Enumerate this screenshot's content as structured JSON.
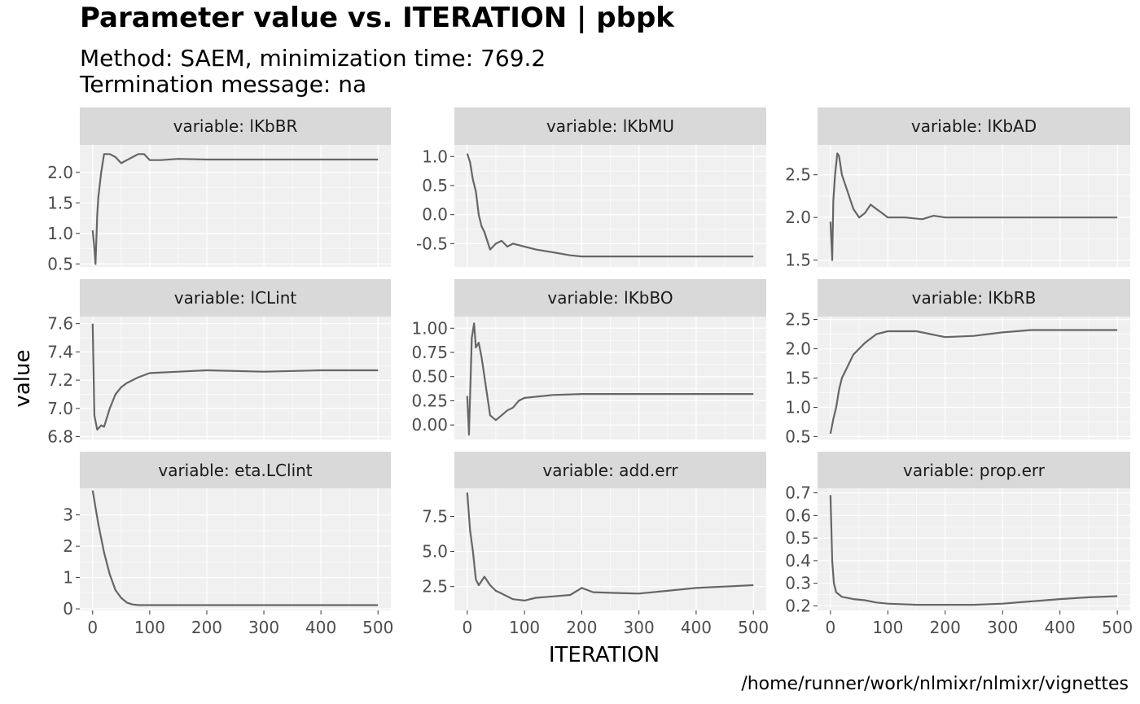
{
  "title": "Parameter value vs. ITERATION | pbpk",
  "subtitle_line1": "Method: SAEM, minimization time: 769.2",
  "subtitle_line2": "Termination message: na",
  "caption": "/home/runner/work/nlmixr/nlmixr/vignettes",
  "colors": {
    "line": "#666666",
    "panel_bg": "#f0f0f0",
    "strip_bg": "#d9d9d9",
    "grid": "#ffffff"
  },
  "chart_data": {
    "type": "line",
    "xlabel": "ITERATION",
    "ylabel": "value",
    "xlim": [
      0,
      500
    ],
    "x_ticks": [
      0,
      100,
      200,
      300,
      400,
      500
    ],
    "x_tick_labels": [
      "0",
      "100",
      "200",
      "300",
      "400",
      "500"
    ],
    "grid": true,
    "facets": [
      {
        "strip": "variable: lKbBR",
        "ylim": [
          0.45,
          2.45
        ],
        "y_ticks": [
          0.5,
          1.0,
          1.5,
          2.0
        ],
        "y_tick_labels": [
          "0.5",
          "1.0",
          "1.5",
          "2.0"
        ],
        "points": [
          [
            0,
            1.05
          ],
          [
            3,
            0.75
          ],
          [
            5,
            0.5
          ],
          [
            8,
            1.3
          ],
          [
            10,
            1.6
          ],
          [
            15,
            2.0
          ],
          [
            20,
            2.3
          ],
          [
            30,
            2.3
          ],
          [
            40,
            2.25
          ],
          [
            50,
            2.15
          ],
          [
            60,
            2.2
          ],
          [
            70,
            2.25
          ],
          [
            80,
            2.3
          ],
          [
            90,
            2.3
          ],
          [
            100,
            2.2
          ],
          [
            120,
            2.2
          ],
          [
            150,
            2.22
          ],
          [
            200,
            2.21
          ],
          [
            300,
            2.21
          ],
          [
            400,
            2.21
          ],
          [
            500,
            2.21
          ]
        ]
      },
      {
        "strip": "variable: lKbMU",
        "ylim": [
          -0.9,
          1.2
        ],
        "y_ticks": [
          -0.5,
          0.0,
          0.5,
          1.0
        ],
        "y_tick_labels": [
          "-0.5",
          "0.0",
          "0.5",
          "1.0"
        ],
        "points": [
          [
            0,
            1.05
          ],
          [
            5,
            0.9
          ],
          [
            10,
            0.6
          ],
          [
            15,
            0.4
          ],
          [
            20,
            0.0
          ],
          [
            25,
            -0.2
          ],
          [
            30,
            -0.3
          ],
          [
            40,
            -0.6
          ],
          [
            50,
            -0.5
          ],
          [
            60,
            -0.45
          ],
          [
            70,
            -0.55
          ],
          [
            80,
            -0.5
          ],
          [
            100,
            -0.55
          ],
          [
            120,
            -0.6
          ],
          [
            150,
            -0.65
          ],
          [
            180,
            -0.7
          ],
          [
            200,
            -0.72
          ],
          [
            250,
            -0.72
          ],
          [
            300,
            -0.72
          ],
          [
            400,
            -0.72
          ],
          [
            500,
            -0.72
          ]
        ]
      },
      {
        "strip": "variable: lKbAD",
        "ylim": [
          1.42,
          2.85
        ],
        "y_ticks": [
          1.5,
          2.0,
          2.5
        ],
        "y_tick_labels": [
          "1.5",
          "2.0",
          "2.5"
        ],
        "points": [
          [
            0,
            1.95
          ],
          [
            3,
            1.5
          ],
          [
            5,
            2.2
          ],
          [
            8,
            2.5
          ],
          [
            12,
            2.75
          ],
          [
            15,
            2.72
          ],
          [
            20,
            2.5
          ],
          [
            30,
            2.3
          ],
          [
            40,
            2.1
          ],
          [
            50,
            2.0
          ],
          [
            60,
            2.05
          ],
          [
            70,
            2.15
          ],
          [
            80,
            2.1
          ],
          [
            90,
            2.05
          ],
          [
            100,
            2.0
          ],
          [
            130,
            2.0
          ],
          [
            160,
            1.98
          ],
          [
            180,
            2.02
          ],
          [
            200,
            2.0
          ],
          [
            300,
            2.0
          ],
          [
            400,
            2.0
          ],
          [
            500,
            2.0
          ]
        ]
      },
      {
        "strip": "variable: lCLint",
        "ylim": [
          6.78,
          7.65
        ],
        "y_ticks": [
          6.8,
          7.0,
          7.2,
          7.4,
          7.6
        ],
        "y_tick_labels": [
          "6.8",
          "7.0",
          "7.2",
          "7.4",
          "7.6"
        ],
        "points": [
          [
            0,
            7.6
          ],
          [
            3,
            6.95
          ],
          [
            8,
            6.85
          ],
          [
            15,
            6.88
          ],
          [
            20,
            6.87
          ],
          [
            30,
            7.0
          ],
          [
            40,
            7.1
          ],
          [
            50,
            7.15
          ],
          [
            60,
            7.18
          ],
          [
            80,
            7.22
          ],
          [
            100,
            7.25
          ],
          [
            150,
            7.26
          ],
          [
            200,
            7.27
          ],
          [
            300,
            7.26
          ],
          [
            400,
            7.27
          ],
          [
            500,
            7.27
          ]
        ]
      },
      {
        "strip": "variable: lKbBO",
        "ylim": [
          -0.15,
          1.12
        ],
        "y_ticks": [
          0.0,
          0.25,
          0.5,
          0.75,
          1.0
        ],
        "y_tick_labels": [
          "0.00",
          "0.25",
          "0.50",
          "0.75",
          "1.00"
        ],
        "points": [
          [
            0,
            0.3
          ],
          [
            3,
            -0.1
          ],
          [
            5,
            0.3
          ],
          [
            8,
            0.9
          ],
          [
            12,
            1.05
          ],
          [
            15,
            0.8
          ],
          [
            20,
            0.85
          ],
          [
            25,
            0.7
          ],
          [
            30,
            0.5
          ],
          [
            35,
            0.3
          ],
          [
            40,
            0.1
          ],
          [
            50,
            0.05
          ],
          [
            60,
            0.1
          ],
          [
            70,
            0.15
          ],
          [
            80,
            0.18
          ],
          [
            90,
            0.25
          ],
          [
            100,
            0.28
          ],
          [
            150,
            0.31
          ],
          [
            200,
            0.32
          ],
          [
            300,
            0.32
          ],
          [
            400,
            0.32
          ],
          [
            500,
            0.32
          ]
        ]
      },
      {
        "strip": "variable: lKbRB",
        "ylim": [
          0.45,
          2.55
        ],
        "y_ticks": [
          0.5,
          1.0,
          1.5,
          2.0,
          2.5
        ],
        "y_tick_labels": [
          "0.5",
          "1.0",
          "1.5",
          "2.0",
          "2.5"
        ],
        "points": [
          [
            0,
            0.55
          ],
          [
            5,
            0.8
          ],
          [
            10,
            1.0
          ],
          [
            15,
            1.3
          ],
          [
            20,
            1.5
          ],
          [
            30,
            1.7
          ],
          [
            40,
            1.9
          ],
          [
            50,
            2.0
          ],
          [
            60,
            2.1
          ],
          [
            80,
            2.25
          ],
          [
            100,
            2.3
          ],
          [
            150,
            2.3
          ],
          [
            200,
            2.2
          ],
          [
            250,
            2.22
          ],
          [
            300,
            2.28
          ],
          [
            350,
            2.32
          ],
          [
            400,
            2.32
          ],
          [
            500,
            2.32
          ]
        ]
      },
      {
        "strip": "variable: eta.LClint",
        "ylim": [
          -0.05,
          3.85
        ],
        "y_ticks": [
          0,
          1,
          2,
          3
        ],
        "y_tick_labels": [
          "0",
          "1",
          "2",
          "3"
        ],
        "points": [
          [
            0,
            3.78
          ],
          [
            10,
            2.7
          ],
          [
            20,
            1.8
          ],
          [
            30,
            1.1
          ],
          [
            40,
            0.6
          ],
          [
            50,
            0.35
          ],
          [
            60,
            0.2
          ],
          [
            70,
            0.14
          ],
          [
            80,
            0.12
          ],
          [
            100,
            0.12
          ],
          [
            200,
            0.12
          ],
          [
            300,
            0.12
          ],
          [
            400,
            0.12
          ],
          [
            500,
            0.12
          ]
        ]
      },
      {
        "strip": "variable: add.err",
        "ylim": [
          0.8,
          9.5
        ],
        "y_ticks": [
          2.5,
          5.0,
          7.5
        ],
        "y_tick_labels": [
          "2.5",
          "5.0",
          "7.5"
        ],
        "points": [
          [
            0,
            9.2
          ],
          [
            5,
            6.5
          ],
          [
            10,
            5.0
          ],
          [
            15,
            3.0
          ],
          [
            20,
            2.6
          ],
          [
            30,
            3.2
          ],
          [
            40,
            2.6
          ],
          [
            50,
            2.2
          ],
          [
            60,
            2.0
          ],
          [
            70,
            1.8
          ],
          [
            80,
            1.6
          ],
          [
            100,
            1.5
          ],
          [
            120,
            1.7
          ],
          [
            150,
            1.8
          ],
          [
            180,
            1.9
          ],
          [
            200,
            2.4
          ],
          [
            220,
            2.1
          ],
          [
            250,
            2.05
          ],
          [
            300,
            2.0
          ],
          [
            350,
            2.2
          ],
          [
            400,
            2.4
          ],
          [
            450,
            2.5
          ],
          [
            500,
            2.6
          ]
        ]
      },
      {
        "strip": "variable: prop.err",
        "ylim": [
          0.18,
          0.72
        ],
        "y_ticks": [
          0.2,
          0.3,
          0.4,
          0.5,
          0.6,
          0.7
        ],
        "y_tick_labels": [
          "0.2",
          "0.3",
          "0.4",
          "0.5",
          "0.6",
          "0.7"
        ],
        "points": [
          [
            0,
            0.69
          ],
          [
            3,
            0.4
          ],
          [
            6,
            0.3
          ],
          [
            10,
            0.26
          ],
          [
            20,
            0.24
          ],
          [
            40,
            0.23
          ],
          [
            60,
            0.225
          ],
          [
            80,
            0.215
          ],
          [
            100,
            0.21
          ],
          [
            150,
            0.205
          ],
          [
            200,
            0.205
          ],
          [
            250,
            0.205
          ],
          [
            300,
            0.21
          ],
          [
            350,
            0.22
          ],
          [
            400,
            0.23
          ],
          [
            450,
            0.238
          ],
          [
            500,
            0.243
          ]
        ]
      }
    ]
  }
}
